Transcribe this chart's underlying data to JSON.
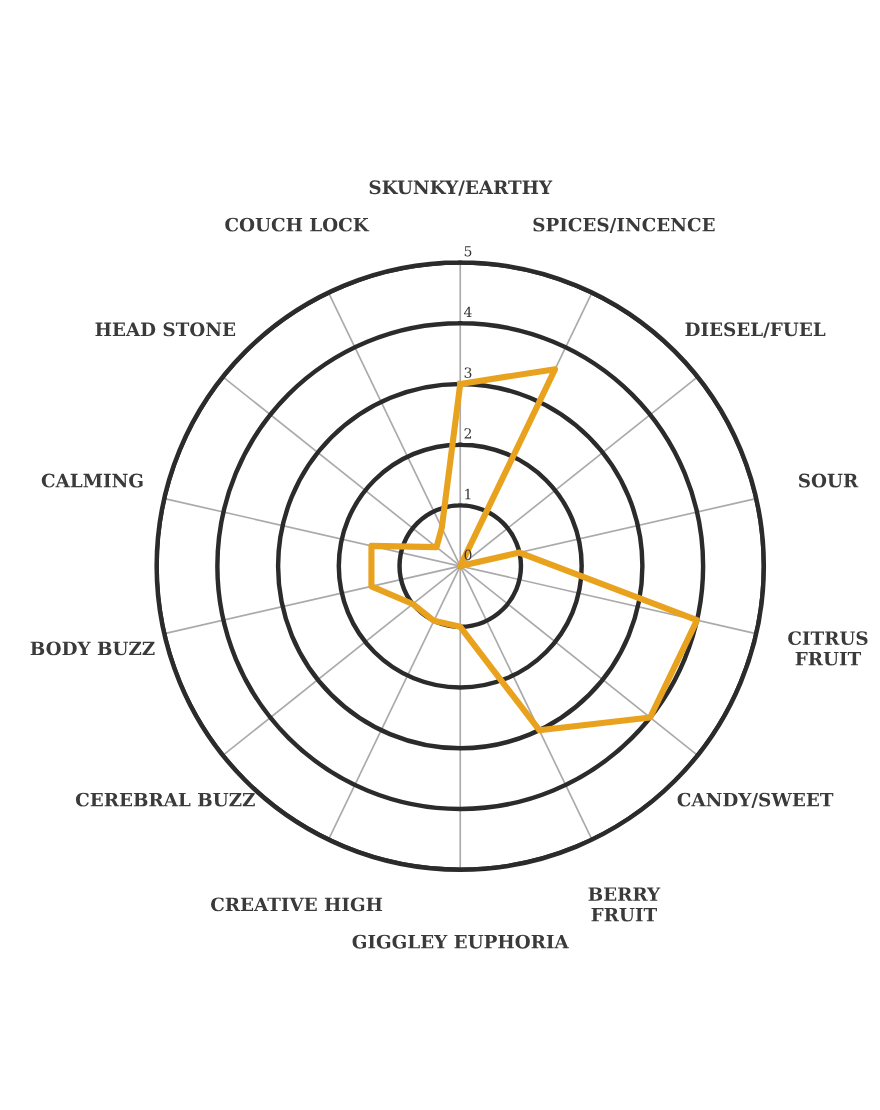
{
  "chart_data": {
    "type": "radar",
    "categories": [
      "SKUNKY/EARTHY",
      "SPICES/INCENCE",
      "DIESEL/FUEL",
      "SOUR",
      "CITRUS\nFRUIT",
      "CANDY/SWEET",
      "BERRY\nFRUIT",
      "GIGGLEY EUPHORIA",
      "CREATIVE HIGH",
      "CEREBRAL BUZZ",
      "BODY BUZZ",
      "CALMING",
      "HEAD STONE",
      "COUCH LOCK"
    ],
    "series": [
      {
        "color": "#e8a21e",
        "values": [
          3,
          3.6,
          0,
          1,
          4,
          4,
          3,
          1,
          1,
          1,
          1.5,
          1.5,
          0.5,
          0.7
        ]
      }
    ],
    "ylim": [
      0,
      5
    ],
    "yticks": [
      0,
      1,
      2,
      3,
      4,
      5
    ],
    "grid": true,
    "marker": "none",
    "line_style": "solid"
  }
}
